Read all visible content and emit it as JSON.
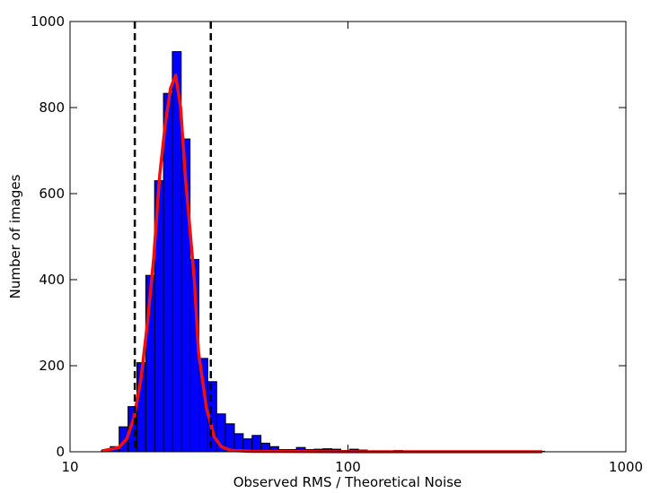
{
  "chart_data": {
    "type": "histogram",
    "xlabel": "Observed RMS / Theoretical Noise",
    "ylabel": "Number of images",
    "xscale": "log",
    "xlim": [
      10,
      1000
    ],
    "ylim": [
      0,
      1000
    ],
    "xticks": [
      10,
      100,
      1000
    ],
    "yticks": [
      0,
      200,
      400,
      600,
      800,
      1000
    ],
    "color": "#0000ff",
    "edgecolor": "#000000",
    "bins": [
      12.97,
      13.96,
      15.02,
      16.17,
      17.4,
      18.73,
      20.15,
      21.69,
      23.34,
      25.12,
      27.03,
      29.09,
      31.31,
      33.7,
      36.26,
      39.03,
      42.0,
      45.2,
      48.65,
      52.35,
      56.34,
      60.63,
      65.25,
      70.23,
      75.58,
      81.34,
      87.54,
      94.21,
      101.4,
      109.1,
      117.4,
      126.4,
      136.0,
      146.4,
      157.5,
      169.5,
      182.4,
      196.3,
      211.3,
      227.4,
      244.7,
      263.4,
      283.4,
      305.0,
      328.3,
      353.3,
      380.2,
      409.2,
      440.4,
      473.9,
      510.0
    ],
    "counts": [
      3,
      12,
      58,
      105,
      207,
      410,
      630,
      833,
      930,
      727,
      447,
      217,
      163,
      88,
      65,
      42,
      30,
      38,
      20,
      12,
      5,
      5,
      10,
      5,
      6,
      7,
      6,
      3,
      6,
      4,
      2,
      1,
      2,
      3,
      2,
      1,
      2,
      1,
      1,
      1,
      0,
      1,
      0,
      0,
      1,
      0,
      0,
      0,
      0,
      1
    ],
    "fit_line": {
      "color": "#ee1111",
      "x": [
        13,
        15,
        16,
        17,
        18,
        19,
        20,
        21,
        22,
        23,
        24,
        25,
        26,
        28,
        29,
        31,
        33,
        35,
        38,
        45,
        100,
        500
      ],
      "values": [
        2,
        10,
        30,
        80,
        170,
        300,
        450,
        640,
        760,
        845,
        875,
        800,
        640,
        400,
        230,
        100,
        35,
        12,
        3,
        1,
        0,
        0
      ]
    },
    "vlines": [
      17.1,
      32.1
    ],
    "vline_color": "#000000"
  }
}
